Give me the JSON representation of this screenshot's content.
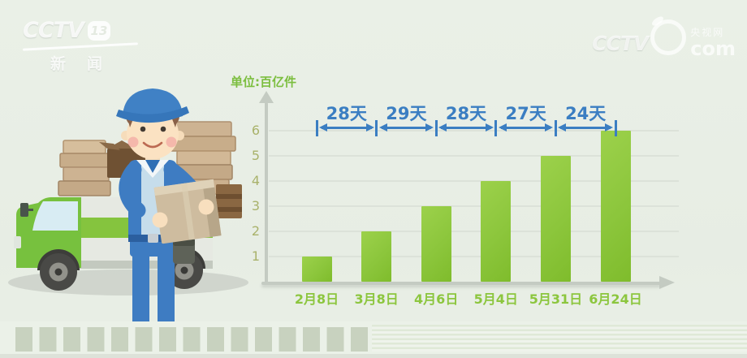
{
  "watermarks": {
    "cctv13": {
      "cctv": "CCTV",
      "num": "13",
      "sub": "新闻"
    },
    "cctv_com": {
      "cctv": "CCTV",
      "cn": "央视网",
      "com": "com"
    }
  },
  "chart_data": {
    "type": "bar",
    "title": "单位:百亿件",
    "ylabel": "单位:百亿件",
    "xlabel": "",
    "categories": [
      "2月8日",
      "3月8日",
      "4月6日",
      "5月4日",
      "5月31日",
      "6月24日"
    ],
    "values": [
      1,
      2,
      3,
      4,
      5,
      6
    ],
    "interval_labels": [
      "28天",
      "29天",
      "28天",
      "27天",
      "24天"
    ],
    "y_ticks": [
      1,
      2,
      3,
      4,
      5,
      6
    ],
    "ylim": [
      0,
      6.6
    ],
    "grid": true,
    "legend": "none",
    "colors": {
      "bar": "#8CC63C",
      "bar_light": "#9CD14B",
      "bar_dark": "#7FBC2C",
      "x_label": "#8CC63E",
      "y_label": "#A9B26B",
      "interval": "#3B7EC2",
      "axis": "#C4CBC2",
      "gridline": "#DCE2D9",
      "unit_label": "#7CBE3F"
    }
  }
}
